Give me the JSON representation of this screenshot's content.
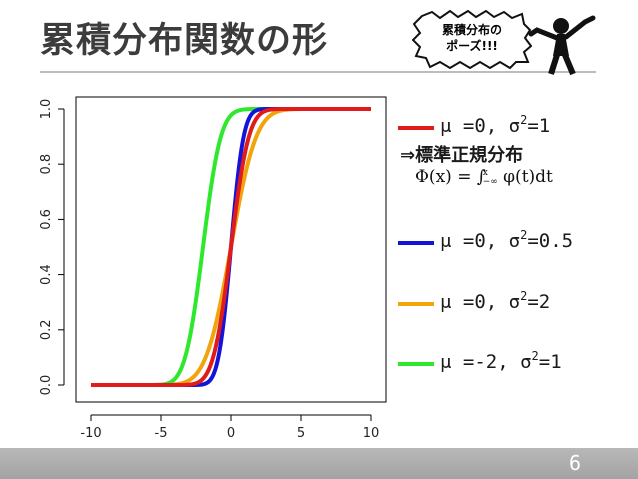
{
  "slide": {
    "title": "累積分布関数の形",
    "bubble_line1": "累積分布の",
    "bubble_line2": "ポーズ!!!",
    "standard_note": "⇒標準正規分布",
    "formula_lhs": "Φ(x) = ∫",
    "formula_upper": "x",
    "formula_lower": "−∞",
    "formula_rhs": "φ(t)dt",
    "page_number": "6"
  },
  "legend": [
    {
      "mu_label": "μ =0,  σ",
      "sigma2_sup": "2",
      "sigma2_value": "=1",
      "color": "#e01b1b"
    },
    {
      "mu_label": "μ =0,  σ",
      "sigma2_sup": "2",
      "sigma2_value": "=0.5",
      "color": "#1414d8"
    },
    {
      "mu_label": "μ =0,  σ",
      "sigma2_sup": "2",
      "sigma2_value": "=2",
      "color": "#f2a40c"
    },
    {
      "mu_label": "μ =-2,  σ",
      "sigma2_sup": "2",
      "sigma2_value": "=1",
      "color": "#2ee82e"
    }
  ],
  "chart_data": {
    "type": "line",
    "title": "",
    "xlabel": "",
    "ylabel": "",
    "xlim": [
      -10,
      10
    ],
    "ylim": [
      0,
      1
    ],
    "x_ticks": [
      "-10",
      "-5",
      "0",
      "5",
      "10"
    ],
    "y_ticks": [
      "0.0",
      "0.2",
      "0.4",
      "0.6",
      "0.8",
      "1.0"
    ],
    "x_tick_values": [
      -10,
      -5,
      0,
      5,
      10
    ],
    "y_tick_values": [
      0,
      0.2,
      0.4,
      0.6,
      0.8,
      1.0
    ],
    "grid": false,
    "legend_position": "right",
    "series": [
      {
        "mu": 0,
        "sigma2": 2,
        "color": "#f2a40c"
      },
      {
        "mu": -2,
        "sigma2": 1,
        "color": "#2ee82e"
      },
      {
        "mu": 0,
        "sigma2": 0.5,
        "color": "#1414d8"
      },
      {
        "mu": 0,
        "sigma2": 1,
        "color": "#e01b1b"
      }
    ]
  }
}
